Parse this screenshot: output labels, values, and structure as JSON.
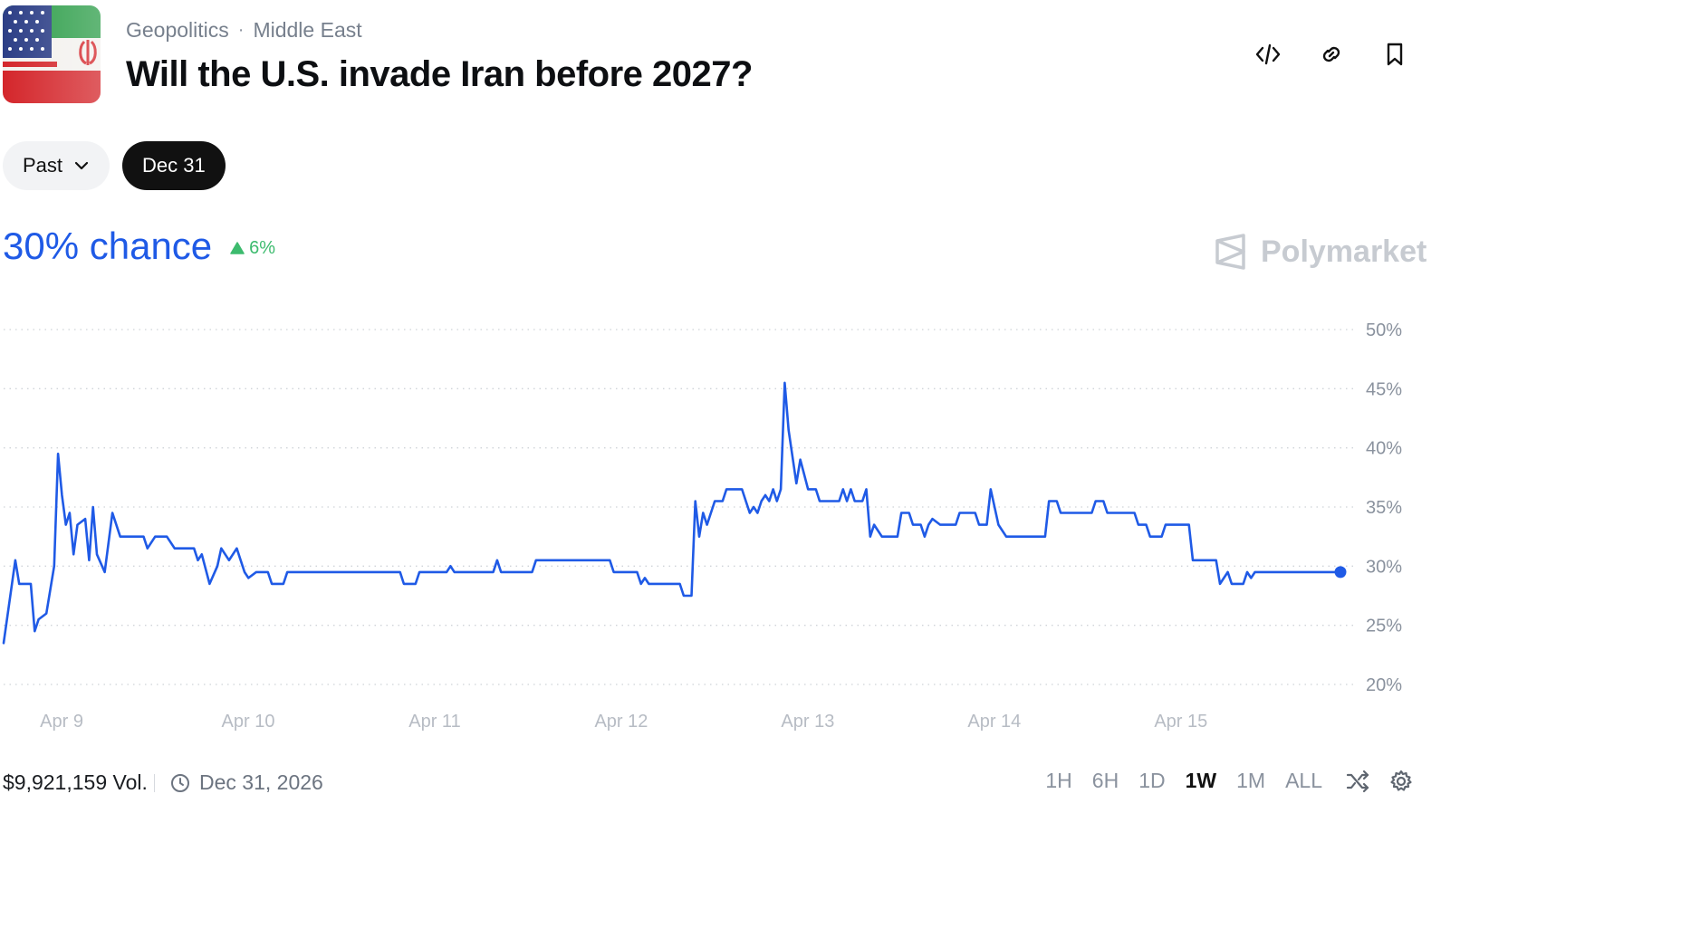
{
  "breadcrumb": {
    "category": "Geopolitics",
    "subcategory": "Middle East",
    "separator": "·"
  },
  "title": "Will the U.S. invade Iran before 2027?",
  "actions": [
    {
      "name": "embed-icon"
    },
    {
      "name": "link-icon"
    },
    {
      "name": "bookmark-icon"
    }
  ],
  "pills": {
    "past_label": "Past",
    "active_label": "Dec 31"
  },
  "chance": {
    "value": "30% chance",
    "change": "6%",
    "change_direction": "up"
  },
  "brand": {
    "name": "Polymarket"
  },
  "footer": {
    "volume": "$9,921,159 Vol.",
    "end_date": "Dec 31, 2026",
    "ranges": [
      "1H",
      "6H",
      "1D",
      "1W",
      "1M",
      "ALL"
    ],
    "selected_range": "1W"
  },
  "colors": {
    "accent": "#1f5ae6",
    "up": "#3dbb6e",
    "muted": "#8a929e"
  },
  "chart_data": {
    "type": "line",
    "x_tick_labels": [
      "Apr 9",
      "Apr 10",
      "Apr 11",
      "Apr 12",
      "Apr 13",
      "Apr 14",
      "Apr 15"
    ],
    "y_tick_labels": [
      "50%",
      "45%",
      "40%",
      "35%",
      "30%",
      "25%",
      "20%"
    ],
    "ylim": [
      20,
      50
    ],
    "xlim": [
      "Apr 8 17:00",
      "Apr 15 21:00"
    ],
    "grid": true,
    "series": [
      {
        "values": [
          [
            "Apr 8 17:00",
            23.5
          ],
          [
            "Apr 8 18:30",
            30.5
          ],
          [
            "Apr 8 19:00",
            28.5
          ],
          [
            "Apr 8 20:30",
            28.5
          ],
          [
            "Apr 8 21:00",
            24.5
          ],
          [
            "Apr 8 21:30",
            25.5
          ],
          [
            "Apr 8 22:30",
            26.0
          ],
          [
            "Apr 8 23:30",
            30.0
          ],
          [
            "Apr 9 00:00",
            39.5
          ],
          [
            "Apr 9 00:30",
            36.0
          ],
          [
            "Apr 9 01:00",
            33.5
          ],
          [
            "Apr 9 01:30",
            34.5
          ],
          [
            "Apr 9 02:00",
            31.0
          ],
          [
            "Apr 9 02:30",
            33.5
          ],
          [
            "Apr 9 03:30",
            34.0
          ],
          [
            "Apr 9 04:00",
            30.5
          ],
          [
            "Apr 9 04:30",
            35.0
          ],
          [
            "Apr 9 05:00",
            31.0
          ],
          [
            "Apr 9 06:00",
            29.5
          ],
          [
            "Apr 9 07:00",
            34.5
          ],
          [
            "Apr 9 08:00",
            32.5
          ],
          [
            "Apr 9 11:00",
            32.5
          ],
          [
            "Apr 9 11:30",
            31.5
          ],
          [
            "Apr 9 12:30",
            32.5
          ],
          [
            "Apr 9 14:00",
            32.5
          ],
          [
            "Apr 9 15:00",
            31.5
          ],
          [
            "Apr 9 17:30",
            31.5
          ],
          [
            "Apr 9 18:00",
            30.5
          ],
          [
            "Apr 9 18:30",
            31.0
          ],
          [
            "Apr 9 19:30",
            28.5
          ],
          [
            "Apr 9 20:30",
            30.0
          ],
          [
            "Apr 9 21:00",
            31.5
          ],
          [
            "Apr 9 22:00",
            30.5
          ],
          [
            "Apr 9 23:00",
            31.5
          ],
          [
            "Apr 9 23:30",
            30.5
          ],
          [
            "Apr 10 00:00",
            29.5
          ],
          [
            "Apr 10 00:30",
            29.0
          ],
          [
            "Apr 10 01:30",
            29.5
          ],
          [
            "Apr 10 03:00",
            29.5
          ],
          [
            "Apr 10 03:30",
            28.5
          ],
          [
            "Apr 10 05:00",
            28.5
          ],
          [
            "Apr 10 05:30",
            29.5
          ],
          [
            "Apr 10 20:00",
            29.5
          ],
          [
            "Apr 10 20:30",
            28.5
          ],
          [
            "Apr 10 22:00",
            28.5
          ],
          [
            "Apr 10 22:30",
            29.5
          ],
          [
            "Apr 11 02:00",
            29.5
          ],
          [
            "Apr 11 02:30",
            30.0
          ],
          [
            "Apr 11 03:00",
            29.5
          ],
          [
            "Apr 11 08:00",
            29.5
          ],
          [
            "Apr 11 08:30",
            30.5
          ],
          [
            "Apr 11 09:00",
            29.5
          ],
          [
            "Apr 11 13:00",
            29.5
          ],
          [
            "Apr 11 13:30",
            30.5
          ],
          [
            "Apr 11 23:00",
            30.5
          ],
          [
            "Apr 11 23:30",
            29.5
          ],
          [
            "Apr 12 02:30",
            29.5
          ],
          [
            "Apr 12 03:00",
            28.5
          ],
          [
            "Apr 12 03:30",
            29.0
          ],
          [
            "Apr 12 04:00",
            28.5
          ],
          [
            "Apr 12 08:00",
            28.5
          ],
          [
            "Apr 12 08:30",
            27.5
          ],
          [
            "Apr 12 09:30",
            27.5
          ],
          [
            "Apr 12 10:00",
            35.5
          ],
          [
            "Apr 12 10:30",
            32.5
          ],
          [
            "Apr 12 11:00",
            34.5
          ],
          [
            "Apr 12 11:30",
            33.5
          ],
          [
            "Apr 12 12:30",
            35.5
          ],
          [
            "Apr 12 13:30",
            35.5
          ],
          [
            "Apr 12 14:00",
            36.5
          ],
          [
            "Apr 12 16:00",
            36.5
          ],
          [
            "Apr 12 16:30",
            35.5
          ],
          [
            "Apr 12 17:00",
            34.5
          ],
          [
            "Apr 12 17:30",
            35.0
          ],
          [
            "Apr 12 18:00",
            34.5
          ],
          [
            "Apr 12 18:30",
            35.5
          ],
          [
            "Apr 12 19:00",
            36.0
          ],
          [
            "Apr 12 19:30",
            35.5
          ],
          [
            "Apr 12 20:00",
            36.5
          ],
          [
            "Apr 12 20:30",
            35.5
          ],
          [
            "Apr 12 21:00",
            36.5
          ],
          [
            "Apr 12 21:30",
            45.5
          ],
          [
            "Apr 12 22:00",
            41.5
          ],
          [
            "Apr 12 23:00",
            37.0
          ],
          [
            "Apr 12 23:30",
            39.0
          ],
          [
            "Apr 13 00:30",
            36.5
          ],
          [
            "Apr 13 01:30",
            36.5
          ],
          [
            "Apr 13 02:00",
            35.5
          ],
          [
            "Apr 13 04:30",
            35.5
          ],
          [
            "Apr 13 05:00",
            36.5
          ],
          [
            "Apr 13 05:30",
            35.5
          ],
          [
            "Apr 13 06:00",
            36.5
          ],
          [
            "Apr 13 06:30",
            35.5
          ],
          [
            "Apr 13 07:30",
            35.5
          ],
          [
            "Apr 13 08:00",
            36.5
          ],
          [
            "Apr 13 08:30",
            32.5
          ],
          [
            "Apr 13 09:00",
            33.5
          ],
          [
            "Apr 13 10:00",
            32.5
          ],
          [
            "Apr 13 12:00",
            32.5
          ],
          [
            "Apr 13 12:30",
            34.5
          ],
          [
            "Apr 13 13:30",
            34.5
          ],
          [
            "Apr 13 14:00",
            33.5
          ],
          [
            "Apr 13 15:00",
            33.5
          ],
          [
            "Apr 13 15:30",
            32.5
          ],
          [
            "Apr 13 16:00",
            33.5
          ],
          [
            "Apr 13 16:30",
            34.0
          ],
          [
            "Apr 13 17:30",
            33.5
          ],
          [
            "Apr 13 19:30",
            33.5
          ],
          [
            "Apr 13 20:00",
            34.5
          ],
          [
            "Apr 13 22:00",
            34.5
          ],
          [
            "Apr 13 22:30",
            33.5
          ],
          [
            "Apr 13 23:30",
            33.5
          ],
          [
            "Apr 14 00:00",
            36.5
          ],
          [
            "Apr 14 01:00",
            33.5
          ],
          [
            "Apr 14 02:00",
            32.5
          ],
          [
            "Apr 14 07:00",
            32.5
          ],
          [
            "Apr 14 07:30",
            35.5
          ],
          [
            "Apr 14 08:30",
            35.5
          ],
          [
            "Apr 14 09:00",
            34.5
          ],
          [
            "Apr 14 13:00",
            34.5
          ],
          [
            "Apr 14 13:30",
            35.5
          ],
          [
            "Apr 14 14:30",
            35.5
          ],
          [
            "Apr 14 15:00",
            34.5
          ],
          [
            "Apr 14 18:30",
            34.5
          ],
          [
            "Apr 14 19:00",
            33.5
          ],
          [
            "Apr 14 20:00",
            33.5
          ],
          [
            "Apr 14 20:30",
            32.5
          ],
          [
            "Apr 14 22:00",
            32.5
          ],
          [
            "Apr 14 22:30",
            33.5
          ],
          [
            "Apr 15 01:30",
            33.5
          ],
          [
            "Apr 15 02:00",
            30.5
          ],
          [
            "Apr 15 05:00",
            30.5
          ],
          [
            "Apr 15 05:30",
            28.5
          ],
          [
            "Apr 15 06:00",
            29.0
          ],
          [
            "Apr 15 06:30",
            29.5
          ],
          [
            "Apr 15 07:00",
            28.5
          ],
          [
            "Apr 15 08:30",
            28.5
          ],
          [
            "Apr 15 09:00",
            29.5
          ],
          [
            "Apr 15 09:30",
            29.0
          ],
          [
            "Apr 15 10:00",
            29.5
          ],
          [
            "Apr 15 21:00",
            29.5
          ]
        ]
      }
    ]
  }
}
